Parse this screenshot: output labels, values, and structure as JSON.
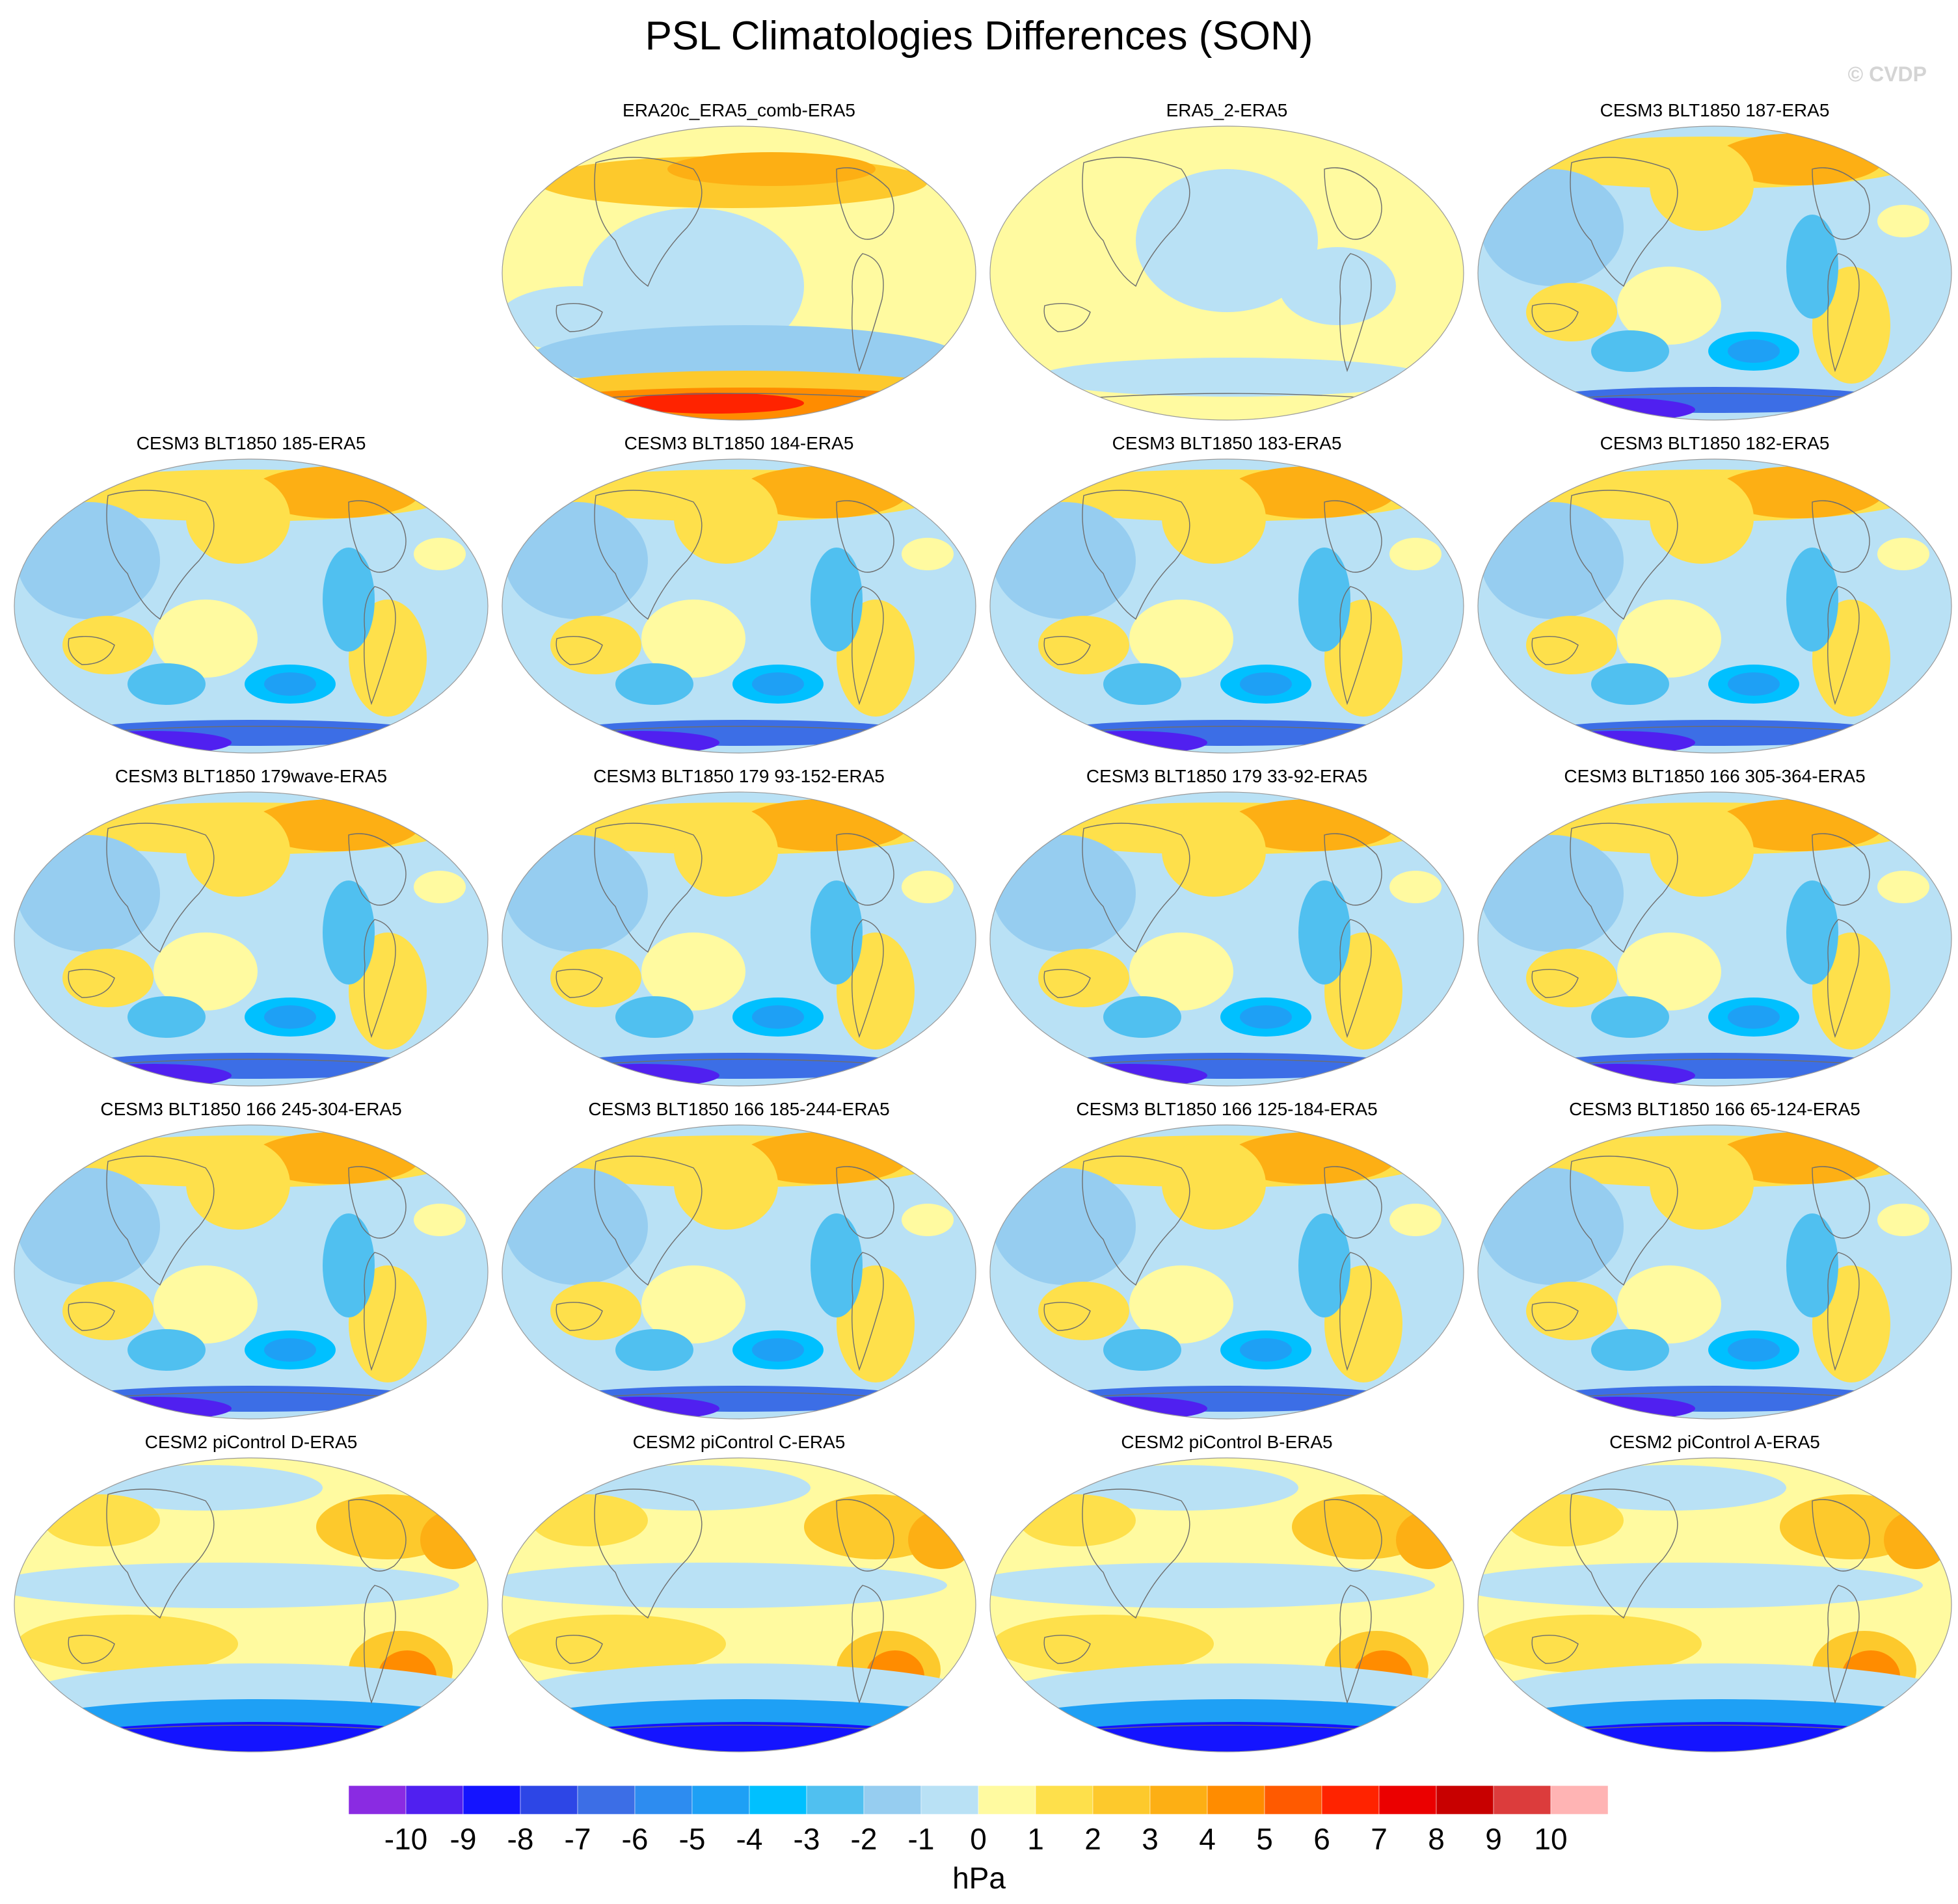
{
  "title": "PSL Climatologies Differences (SON)",
  "watermark": "© CVDP",
  "panels": [
    {
      "label": "ERA20c_ERA5_comb-ERA5",
      "pattern": "era20c"
    },
    {
      "label": "ERA5_2-ERA5",
      "pattern": "era5"
    },
    {
      "label": "CESM3 BLT1850 187-ERA5",
      "pattern": "cesm3"
    },
    {
      "label": "CESM3 BLT1850 185-ERA5",
      "pattern": "cesm3"
    },
    {
      "label": "CESM3 BLT1850 184-ERA5",
      "pattern": "cesm3"
    },
    {
      "label": "CESM3 BLT1850 183-ERA5",
      "pattern": "cesm3"
    },
    {
      "label": "CESM3 BLT1850 182-ERA5",
      "pattern": "cesm3"
    },
    {
      "label": "CESM3 BLT1850 179wave-ERA5",
      "pattern": "cesm3"
    },
    {
      "label": "CESM3 BLT1850 179 93-152-ERA5",
      "pattern": "cesm3"
    },
    {
      "label": "CESM3 BLT1850 179 33-92-ERA5",
      "pattern": "cesm3"
    },
    {
      "label": "CESM3 BLT1850 166 305-364-ERA5",
      "pattern": "cesm3"
    },
    {
      "label": "CESM3 BLT1850 166 245-304-ERA5",
      "pattern": "cesm3"
    },
    {
      "label": "CESM3 BLT1850 166 185-244-ERA5",
      "pattern": "cesm3"
    },
    {
      "label": "CESM3 BLT1850 166 125-184-ERA5",
      "pattern": "cesm3"
    },
    {
      "label": "CESM3 BLT1850 166 65-124-ERA5",
      "pattern": "cesm3"
    },
    {
      "label": "CESM2 piControl D-ERA5",
      "pattern": "cesm2"
    },
    {
      "label": "CESM2 piControl C-ERA5",
      "pattern": "cesm2"
    },
    {
      "label": "CESM2 piControl B-ERA5",
      "pattern": "cesm2"
    },
    {
      "label": "CESM2 piControl A-ERA5",
      "pattern": "cesm2"
    }
  ],
  "colorbar": {
    "units": "hPa",
    "labels": [
      "-10",
      "-9",
      "-8",
      "-7",
      "-6",
      "-5",
      "-4",
      "-3",
      "-2",
      "-1",
      "0",
      "1",
      "2",
      "3",
      "4",
      "5",
      "6",
      "7",
      "8",
      "9",
      "10"
    ],
    "colors": [
      "#8a2be2",
      "#5020f0",
      "#1414ff",
      "#2d46e6",
      "#3c6ee6",
      "#2d8cf0",
      "#1ea0f5",
      "#00c0ff",
      "#50c0f0",
      "#96cdf0",
      "#b9e1f5",
      "#fffaa0",
      "#fee04b",
      "#fdc92c",
      "#fdaf14",
      "#ff8c00",
      "#ff5a00",
      "#ff2300",
      "#eb0000",
      "#c80000",
      "#dc3c3c",
      "#ffb4b4"
    ]
  }
}
